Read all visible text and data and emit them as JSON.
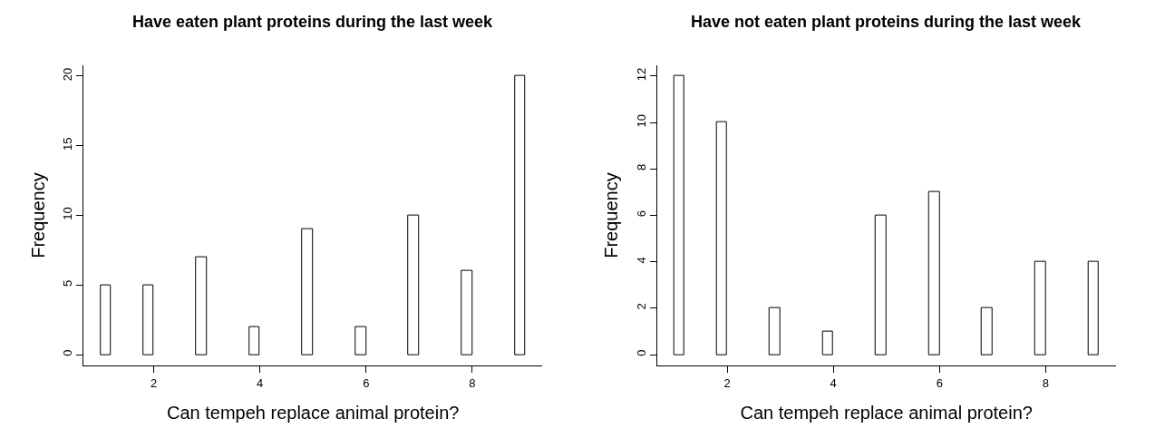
{
  "chart_data": [
    {
      "type": "histogram",
      "title": "Have eaten plant proteins during the last week",
      "xlabel": "Can tempeh replace animal protein?",
      "ylabel": "Frequency",
      "color": "#ffffff",
      "bins": [
        1.0,
        1.2,
        1.4,
        1.6,
        1.8,
        2.0,
        2.2,
        2.4,
        2.6,
        2.8,
        3.0,
        3.2,
        3.4,
        3.6,
        3.8,
        4.0,
        4.2,
        4.4,
        4.6,
        4.8,
        5.0,
        5.2,
        5.4,
        5.6,
        5.8,
        6.0,
        6.2,
        6.4,
        6.6,
        6.8,
        7.0,
        7.2,
        7.4,
        7.6,
        7.8,
        8.0,
        8.2,
        8.4,
        8.6,
        8.8,
        9.0
      ],
      "values": [
        5,
        0,
        0,
        0,
        5,
        0,
        0,
        0,
        0,
        7,
        0,
        0,
        0,
        0,
        2,
        0,
        0,
        0,
        0,
        9,
        0,
        0,
        0,
        0,
        2,
        0,
        0,
        0,
        0,
        10,
        0,
        0,
        0,
        0,
        6,
        0,
        0,
        0,
        0,
        20
      ],
      "xlim": [
        0.68,
        9.32
      ],
      "xticks": [
        2,
        4,
        6,
        8
      ],
      "ylim": [
        -0.8,
        20.8
      ],
      "yticks": [
        0,
        5,
        10,
        15,
        20
      ]
    },
    {
      "type": "histogram",
      "title": "Have not eaten plant proteins during the last week",
      "xlabel": "Can tempeh replace animal protein?",
      "ylabel": "Frequency",
      "color": "#ffffff",
      "bins": [
        1.0,
        1.2,
        1.4,
        1.6,
        1.8,
        2.0,
        2.2,
        2.4,
        2.6,
        2.8,
        3.0,
        3.2,
        3.4,
        3.6,
        3.8,
        4.0,
        4.2,
        4.4,
        4.6,
        4.8,
        5.0,
        5.2,
        5.4,
        5.6,
        5.8,
        6.0,
        6.2,
        6.4,
        6.6,
        6.8,
        7.0,
        7.2,
        7.4,
        7.6,
        7.8,
        8.0,
        8.2,
        8.4,
        8.6,
        8.8,
        9.0
      ],
      "values": [
        12,
        0,
        0,
        0,
        10,
        0,
        0,
        0,
        0,
        2,
        0,
        0,
        0,
        0,
        1,
        0,
        0,
        0,
        0,
        6,
        0,
        0,
        0,
        0,
        7,
        0,
        0,
        0,
        0,
        2,
        0,
        0,
        0,
        0,
        4,
        0,
        0,
        0,
        0,
        4
      ],
      "xlim": [
        0.68,
        9.32
      ],
      "xticks": [
        2,
        4,
        6,
        8
      ],
      "ylim": [
        -0.48,
        12.48
      ],
      "yticks": [
        0,
        2,
        4,
        6,
        8,
        10,
        12
      ]
    }
  ]
}
